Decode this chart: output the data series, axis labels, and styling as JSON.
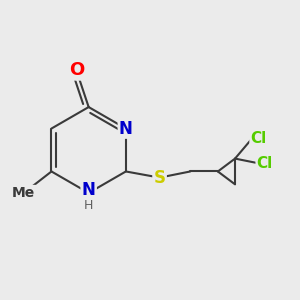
{
  "bg_color": "#ebebeb",
  "bond_color": "#3a3a3a",
  "atom_colors": {
    "O": "#ff0000",
    "N": "#0000cc",
    "S": "#cccc00",
    "Cl": "#55cc00",
    "C": "#3a3a3a",
    "H": "#606060"
  },
  "bond_lw": 1.5,
  "figsize": [
    3.0,
    3.0
  ],
  "dpi": 100
}
